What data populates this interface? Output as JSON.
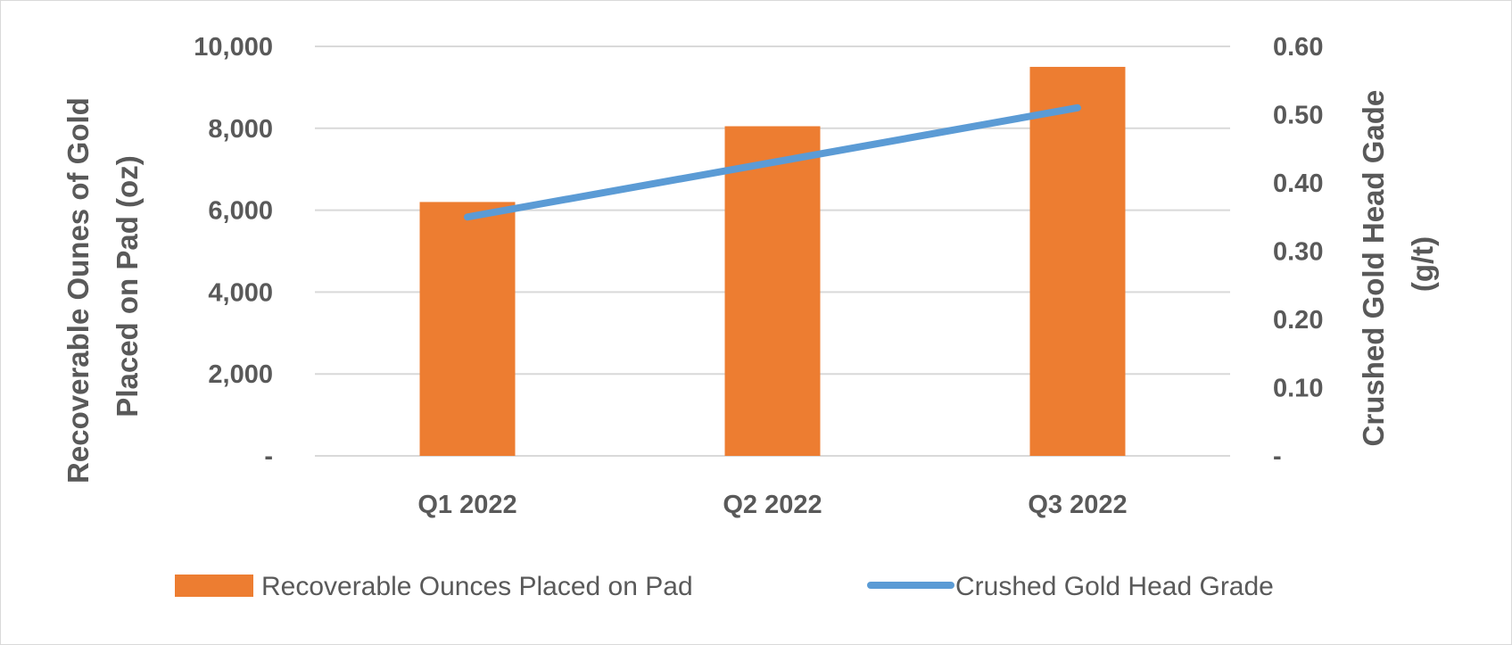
{
  "chart_data": {
    "type": "bar",
    "categories": [
      "Q1 2022",
      "Q2 2022",
      "Q3 2022"
    ],
    "series": [
      {
        "name": "Recoverable Ounces Placed on Pad",
        "type": "bar",
        "axis": "left",
        "color": "#ED7D31",
        "values": [
          6200,
          8050,
          9500
        ]
      },
      {
        "name": "Crushed Gold Head Grade",
        "type": "line",
        "axis": "right",
        "color": "#5B9BD5",
        "values": [
          0.35,
          0.43,
          0.51
        ]
      }
    ],
    "y_left": {
      "label_lines": [
        "Recoverable Ounes of Gold",
        "Placed on Pad (oz)"
      ],
      "lim": [
        0,
        10000
      ],
      "ticks": [
        0,
        2000,
        4000,
        6000,
        8000,
        10000
      ],
      "tick_labels": [
        "-",
        "2,000",
        "4,000",
        "6,000",
        "8,000",
        "10,000"
      ]
    },
    "y_right": {
      "label_lines": [
        "Crushed Gold Head Gade",
        "(g/t)"
      ],
      "lim": [
        0,
        0.6
      ],
      "ticks": [
        0,
        0.1,
        0.2,
        0.3,
        0.4,
        0.5,
        0.6
      ],
      "tick_labels": [
        "-",
        "0.10",
        "0.20",
        "0.30",
        "0.40",
        "0.50",
        "0.60"
      ]
    },
    "grid": true,
    "legend": "bottom"
  }
}
